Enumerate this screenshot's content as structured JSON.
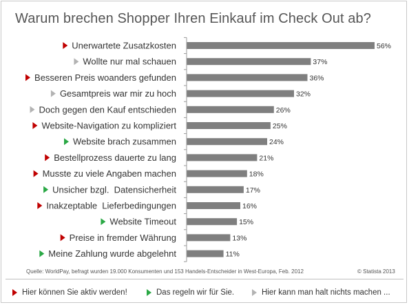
{
  "title": "Warum brechen Shopper Ihren Einkauf im Check Out ab?",
  "colors": {
    "bar": "#7f7f7f",
    "red": "#c00000",
    "green": "#2aa845",
    "gray": "#b3b3b3",
    "text": "#333333"
  },
  "chart_data": {
    "type": "bar",
    "orientation": "horizontal",
    "categories": [
      "Unerwartete Zusatzkosten",
      "Wollte nur mal schauen",
      "Besseren Preis woanders gefunden",
      "Gesamtpreis war mir zu hoch",
      "Doch gegen den Kauf entschieden",
      "Website-Navigation zu kompliziert",
      "Website brach zusammen",
      "Bestellprozess dauerte zu lang",
      "Musste zu viele Angaben machen",
      "Unsicher bzgl.  Datensicherheit",
      "Inakzeptable  Lieferbedingungen",
      "Website Timeout",
      "Preise in fremder Währung",
      "Meine Zahlung wurde abgelehnt"
    ],
    "values": [
      56,
      37,
      36,
      32,
      26,
      25,
      24,
      21,
      18,
      17,
      16,
      15,
      13,
      11
    ],
    "value_labels": [
      "56%",
      "37%",
      "36%",
      "32%",
      "26%",
      "25%",
      "24%",
      "21%",
      "18%",
      "17%",
      "16%",
      "15%",
      "13%",
      "11%"
    ],
    "marker_groups": [
      "red",
      "gray",
      "red",
      "gray",
      "gray",
      "red",
      "green",
      "red",
      "red",
      "green",
      "red",
      "green",
      "red",
      "green"
    ],
    "xlim": [
      0,
      56
    ],
    "grid": false,
    "legend": "bottom"
  },
  "footer": {
    "source": "Quelle: WorldPay, befragt wurden 19.000 Konsumenten und 153 Handels-Entscheider in West-Europa, Feb. 2012",
    "credit": "© Statista 2013"
  },
  "legend": [
    {
      "color_key": "red",
      "label": "Hier können Sie aktiv werden!"
    },
    {
      "color_key": "green",
      "label": "Das  regeln wir für Sie."
    },
    {
      "color_key": "gray",
      "label": "Hier kann man halt nichts machen ..."
    }
  ]
}
